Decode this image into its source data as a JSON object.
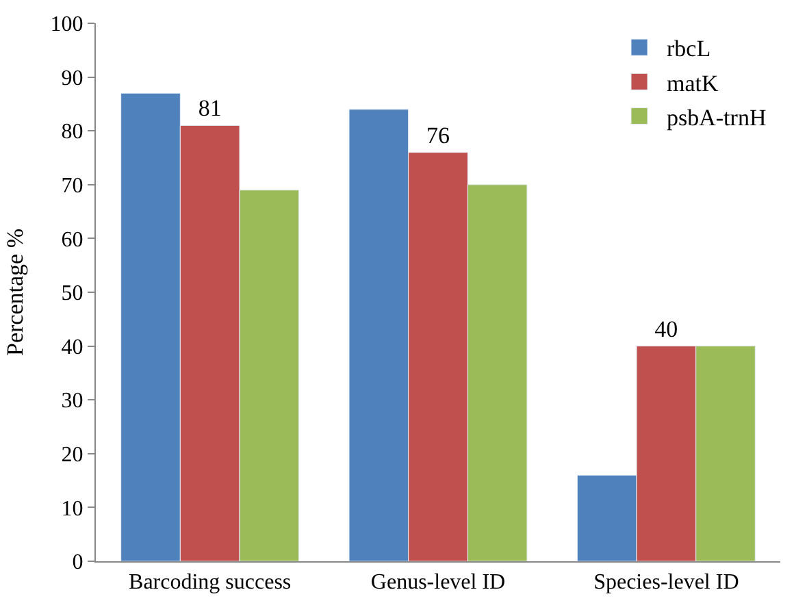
{
  "chart_data": {
    "type": "bar",
    "ylabel": "Percentage %",
    "categories": [
      "Barcoding success",
      "Genus-level ID",
      "Species-level ID"
    ],
    "series": [
      {
        "name": "rbcL",
        "color": "#4f81bd",
        "values": [
          87,
          84,
          16
        ]
      },
      {
        "name": "matK",
        "color": "#c0504d",
        "values": [
          81,
          76,
          40
        ],
        "value_labels": [
          "81",
          "76",
          "40"
        ]
      },
      {
        "name": "psbA-trnH",
        "color": "#9bbb59",
        "values": [
          69,
          70,
          40
        ]
      }
    ],
    "ylim": [
      0,
      100
    ],
    "yticks": [
      0,
      10,
      20,
      30,
      40,
      50,
      60,
      70,
      80,
      90,
      100
    ],
    "legend": "top right"
  }
}
